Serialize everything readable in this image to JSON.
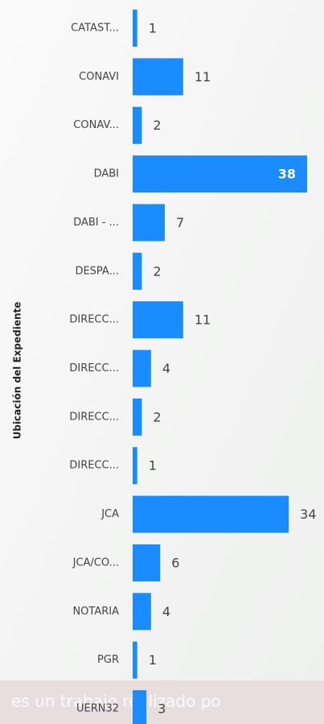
{
  "chart_data": {
    "type": "bar",
    "orientation": "horizontal",
    "y_label": "Ubicación del Expediente",
    "categories": [
      "CATAST...",
      "CONAVI",
      "CONAV...",
      "DABI",
      "DABI - ...",
      "DESPA...",
      "DIRECC...",
      "DIRECC...",
      "DIRECC...",
      "DIRECC...",
      "JCA",
      "JCA/CO...",
      "NOTARIA",
      "PGR",
      "UERN32"
    ],
    "values": [
      1,
      11,
      2,
      38,
      7,
      2,
      11,
      4,
      2,
      1,
      34,
      6,
      4,
      1,
      3
    ],
    "color": "#1a8cff",
    "xlim": [
      0,
      38
    ]
  },
  "footer": "es un trabajo realizado po"
}
